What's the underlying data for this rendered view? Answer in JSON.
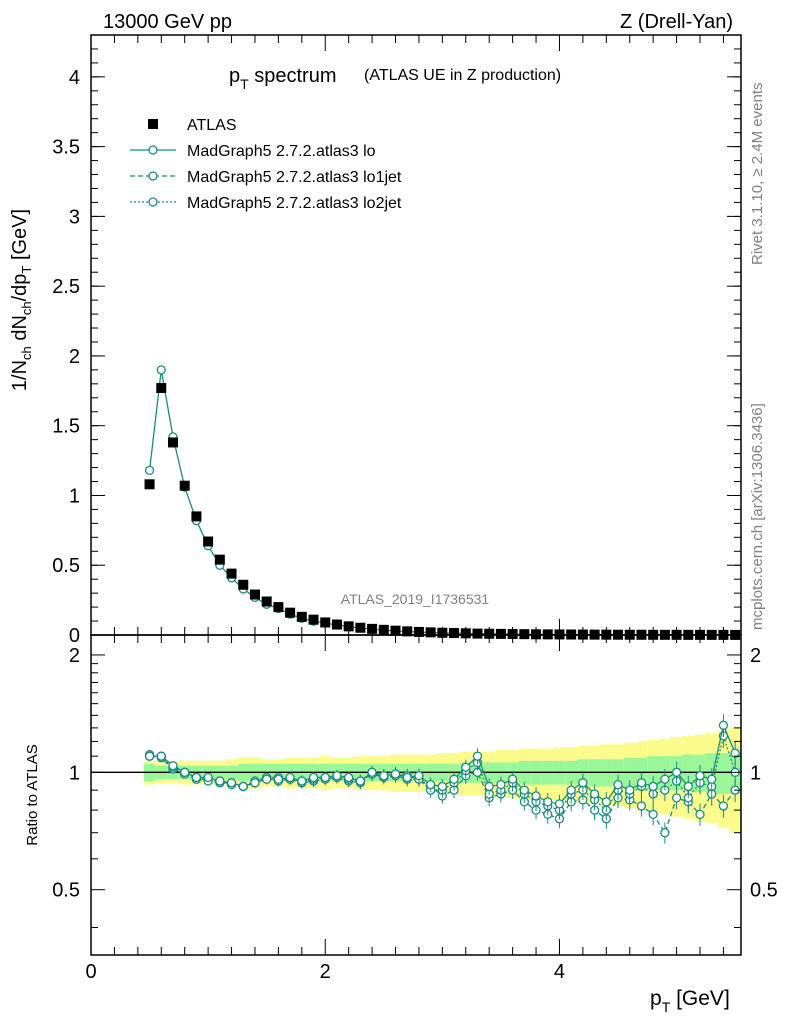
{
  "header": {
    "left": "13000 GeV pp",
    "right": "Z (Drell-Yan)"
  },
  "title": {
    "main": "p",
    "main_sub": "T",
    "main_rest": " spectrum",
    "extra": "(ATLAS UE in Z production)"
  },
  "side_labels": {
    "rivet": "Rivet 3.1.10, ≥ 2.4M events",
    "mcplots": "mcplots.cern.ch [arXiv:1306.3436]"
  },
  "watermark": "ATLAS_2019_I1736531",
  "axes": {
    "xlabel": "p",
    "xlabel_sub": "T",
    "xlabel_unit": " [GeV]",
    "ylabel_main": "1/N_ch dN_ch/dp_T [GeV]",
    "ylabel_ratio": "Ratio to ATLAS"
  },
  "legend": [
    {
      "label": "ATLAS",
      "style": "data"
    },
    {
      "label": "MadGraph5 2.7.2.atlas3 lo",
      "style": "solid"
    },
    {
      "label": "MadGraph5 2.7.2.atlas3 lo1jet",
      "style": "dashed"
    },
    {
      "label": "MadGraph5 2.7.2.atlas3 lo2jet",
      "style": "dotted"
    }
  ],
  "colors": {
    "mc": "#1a8a80",
    "data": "#000000",
    "band_inner": "#99f799",
    "band_outer": "#fbfb8c"
  },
  "chart_data": [
    {
      "type": "scatter",
      "panel": "main",
      "xlim": [
        0,
        5.55
      ],
      "ylim": [
        0,
        4.3
      ],
      "xticks": [
        "0",
        "2",
        "4"
      ],
      "yticks": [
        "0",
        "0.5",
        "1",
        "1.5",
        "2",
        "2.5",
        "3",
        "3.5",
        "4"
      ],
      "x": [
        0.5,
        0.6,
        0.7,
        0.8,
        0.9,
        1.0,
        1.1,
        1.2,
        1.3,
        1.4,
        1.5,
        1.6,
        1.7,
        1.8,
        1.9,
        2.0,
        2.1,
        2.2,
        2.3,
        2.4,
        2.5,
        2.6,
        2.7,
        2.8,
        2.9,
        3.0,
        3.1,
        3.2,
        3.3,
        3.4,
        3.5,
        3.6,
        3.7,
        3.8,
        3.9,
        4.0,
        4.1,
        4.2,
        4.3,
        4.4,
        4.5,
        4.6,
        4.7,
        4.8,
        4.9,
        5.0,
        5.1,
        5.2,
        5.3,
        5.4,
        5.5
      ],
      "series": [
        {
          "name": "ATLAS",
          "values": [
            1.08,
            1.77,
            1.38,
            1.07,
            0.85,
            0.67,
            0.54,
            0.44,
            0.36,
            0.29,
            0.24,
            0.2,
            0.16,
            0.13,
            0.11,
            0.09,
            0.075,
            0.062,
            0.052,
            0.044,
            0.037,
            0.031,
            0.026,
            0.022,
            0.019,
            0.016,
            0.014,
            0.012,
            0.01,
            0.009,
            0.008,
            0.007,
            0.006,
            0.005,
            0.0045,
            0.004,
            0.0035,
            0.003,
            0.0027,
            0.0024,
            0.0021,
            0.0019,
            0.0017,
            0.0015,
            0.0013,
            0.0012,
            0.0011,
            0.001,
            0.0009,
            0.0008,
            0.0007
          ]
        },
        {
          "name": "MadGraph5 2.7.2.atlas3 lo",
          "values": [
            1.18,
            1.9,
            1.42,
            1.06,
            0.82,
            0.64,
            0.5,
            0.41,
            0.33,
            0.27,
            0.22,
            0.19,
            0.15,
            0.12,
            0.1,
            0.085,
            0.072,
            0.06,
            0.05,
            0.043,
            0.035,
            0.03,
            0.025,
            0.021,
            0.018,
            0.015,
            0.013,
            0.011,
            0.0095,
            0.0085,
            0.0075,
            0.0065,
            0.0055,
            0.0047,
            0.004,
            0.0037,
            0.0032,
            0.0028,
            0.0025,
            0.0022,
            0.0019,
            0.0017,
            0.0015,
            0.0013,
            0.0012,
            0.0011,
            0.001,
            0.0009,
            0.0008,
            0.0007,
            0.0006
          ]
        }
      ]
    },
    {
      "type": "scatter",
      "panel": "ratio",
      "xlim": [
        0,
        5.55
      ],
      "ylim": [
        0.34,
        2.25
      ],
      "yscale": "log",
      "yticks": [
        "0.5",
        "1",
        "2"
      ],
      "x": [
        0.5,
        0.6,
        0.7,
        0.8,
        0.9,
        1.0,
        1.1,
        1.2,
        1.3,
        1.4,
        1.5,
        1.6,
        1.7,
        1.8,
        1.9,
        2.0,
        2.1,
        2.2,
        2.3,
        2.4,
        2.5,
        2.6,
        2.7,
        2.8,
        2.9,
        3.0,
        3.1,
        3.2,
        3.3,
        3.4,
        3.5,
        3.6,
        3.7,
        3.8,
        3.9,
        4.0,
        4.1,
        4.2,
        4.3,
        4.4,
        4.5,
        4.6,
        4.7,
        4.8,
        4.9,
        5.0,
        5.1,
        5.2,
        5.3,
        5.4,
        5.5
      ],
      "band_inner": [
        0.05,
        0.04,
        0.04,
        0.04,
        0.04,
        0.04,
        0.04,
        0.04,
        0.05,
        0.05,
        0.05,
        0.05,
        0.05,
        0.05,
        0.05,
        0.05,
        0.05,
        0.05,
        0.05,
        0.05,
        0.05,
        0.05,
        0.05,
        0.05,
        0.05,
        0.05,
        0.05,
        0.06,
        0.06,
        0.06,
        0.06,
        0.06,
        0.07,
        0.07,
        0.07,
        0.07,
        0.07,
        0.08,
        0.08,
        0.08,
        0.08,
        0.09,
        0.09,
        0.1,
        0.1,
        0.1,
        0.11,
        0.11,
        0.12,
        0.12,
        0.12
      ],
      "band_outer": [
        0.07,
        0.06,
        0.06,
        0.07,
        0.07,
        0.07,
        0.07,
        0.08,
        0.09,
        0.09,
        0.08,
        0.08,
        0.09,
        0.09,
        0.09,
        0.1,
        0.09,
        0.09,
        0.1,
        0.1,
        0.1,
        0.11,
        0.11,
        0.11,
        0.11,
        0.12,
        0.12,
        0.13,
        0.13,
        0.13,
        0.14,
        0.14,
        0.15,
        0.15,
        0.15,
        0.16,
        0.16,
        0.17,
        0.17,
        0.18,
        0.18,
        0.19,
        0.2,
        0.21,
        0.22,
        0.23,
        0.24,
        0.25,
        0.26,
        0.28,
        0.3
      ],
      "series": [
        {
          "name": "MadGraph5 2.7.2.atlas3 lo",
          "values": [
            1.11,
            1.09,
            1.02,
            0.99,
            0.96,
            0.96,
            0.94,
            0.94,
            0.92,
            0.94,
            0.97,
            0.95,
            0.96,
            0.94,
            0.95,
            0.96,
            0.97,
            0.95,
            0.94,
            0.99,
            0.97,
            0.98,
            0.96,
            0.96,
            0.92,
            0.87,
            0.9,
            0.98,
            1.0,
            0.86,
            0.88,
            0.9,
            0.84,
            0.8,
            0.78,
            0.76,
            0.84,
            0.85,
            0.8,
            0.76,
            0.86,
            0.85,
            0.82,
            0.78,
            0.7,
            0.86,
            0.84,
            0.78,
            0.88,
            0.82,
            0.9
          ]
        },
        {
          "name": "MadGraph5 2.7.2.atlas3 lo1jet",
          "values": [
            1.1,
            1.1,
            1.03,
            1.0,
            0.97,
            0.95,
            0.95,
            0.93,
            0.92,
            0.95,
            0.97,
            0.97,
            0.96,
            0.95,
            0.96,
            0.97,
            0.98,
            0.96,
            0.95,
            0.99,
            0.98,
            0.99,
            0.98,
            0.96,
            0.9,
            0.9,
            0.94,
            1.01,
            1.06,
            0.88,
            0.9,
            0.94,
            0.88,
            0.84,
            0.82,
            0.8,
            0.88,
            0.9,
            0.85,
            0.8,
            0.9,
            0.88,
            0.92,
            0.88,
            0.9,
            0.95,
            0.86,
            0.94,
            0.92,
            1.24,
            1.0
          ]
        },
        {
          "name": "MadGraph5 2.7.2.atlas3 lo2jet",
          "values": [
            1.1,
            1.1,
            1.04,
            1.0,
            0.97,
            0.97,
            0.95,
            0.94,
            0.92,
            0.94,
            0.96,
            0.96,
            0.97,
            0.95,
            0.97,
            0.97,
            0.98,
            0.97,
            0.95,
            1.0,
            0.98,
            0.99,
            0.97,
            0.98,
            0.93,
            0.92,
            0.96,
            1.03,
            1.1,
            0.92,
            0.93,
            0.96,
            0.9,
            0.87,
            0.84,
            0.83,
            0.9,
            0.94,
            0.88,
            0.84,
            0.93,
            0.9,
            0.94,
            0.92,
            0.96,
            1.0,
            0.92,
            0.98,
            0.96,
            1.32,
            1.12
          ]
        }
      ]
    }
  ]
}
